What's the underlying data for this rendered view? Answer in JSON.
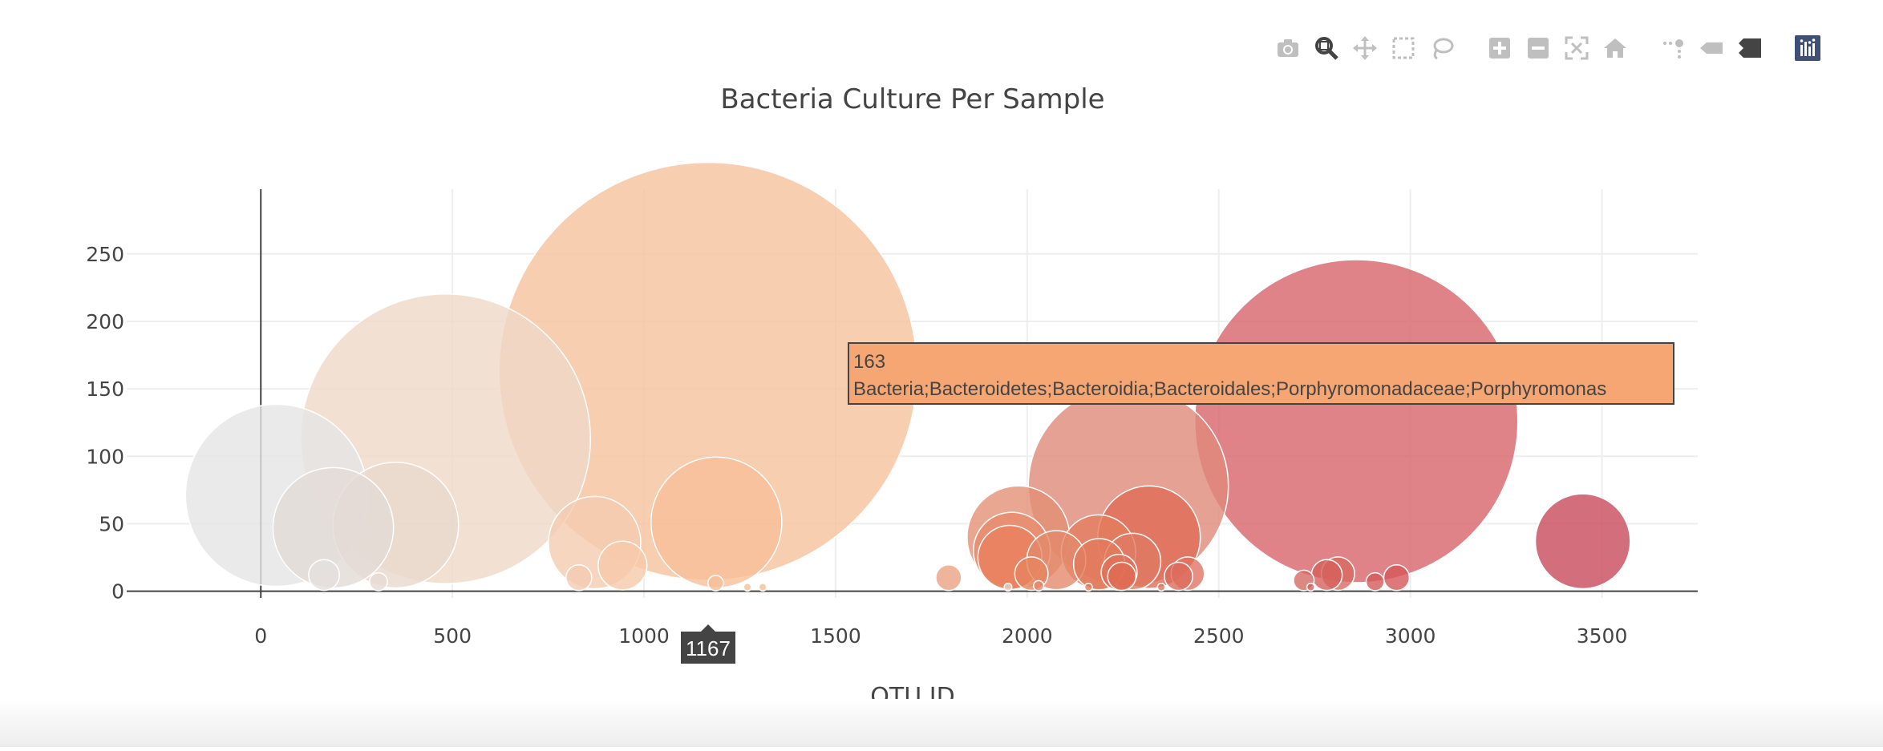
{
  "modebar": {
    "buttons": [
      {
        "name": "camera-icon",
        "group": 1
      },
      {
        "name": "zoom-icon",
        "group": 1
      },
      {
        "name": "pan-icon",
        "group": 1
      },
      {
        "name": "box-select-icon",
        "group": 1
      },
      {
        "name": "lasso-select-icon",
        "group": 1
      },
      {
        "name": "zoom-in-icon",
        "group": 2
      },
      {
        "name": "zoom-out-icon",
        "group": 2
      },
      {
        "name": "autoscale-icon",
        "group": 2
      },
      {
        "name": "reset-axes-icon",
        "group": 2
      },
      {
        "name": "spike-lines-icon",
        "group": 3
      },
      {
        "name": "hover-closest-icon",
        "group": 3
      },
      {
        "name": "hover-compare-icon",
        "group": 3
      },
      {
        "name": "plotly-logo-icon",
        "group": 4
      }
    ],
    "icon_color": "#bfbfbf",
    "active_color": "#444444",
    "logo_color": "#3f4f75"
  },
  "hover": {
    "value": "163",
    "label": "Bacteria;Bacteroidetes;Bacteroidia;Bacteroidales;Porphyromonadaceae;Porphyromonas",
    "x_label": "1167",
    "bg_color": "#f5a673",
    "x_bg_color": "#444444"
  },
  "chart_data": {
    "type": "scatter",
    "mode": "bubble",
    "title": "Bacteria Culture Per Sample",
    "xlabel": "OTU ID",
    "ylabel": "",
    "xlim": [
      -350,
      3750
    ],
    "ylim": [
      -5,
      298
    ],
    "xticks": [
      0,
      500,
      1000,
      1500,
      2000,
      2500,
      3000,
      3500
    ],
    "yticks": [
      0,
      50,
      100,
      150,
      200,
      250
    ],
    "grid": true,
    "colorscale": "Reds-like (light grey to dark red by OTU ID)",
    "points": [
      {
        "x": 41,
        "y": 71,
        "size": 71,
        "color": "#e5e5e5"
      },
      {
        "x": 189,
        "y": 47,
        "size": 47,
        "color": "#e2dbd7"
      },
      {
        "x": 352,
        "y": 49,
        "size": 49,
        "color": "#e9d8cd"
      },
      {
        "x": 482,
        "y": 113,
        "size": 113,
        "color": "#efd9c8"
      },
      {
        "x": 165,
        "y": 12,
        "size": 12,
        "color": "#e4e0dd"
      },
      {
        "x": 307,
        "y": 7,
        "size": 7,
        "color": "#e6dbd3"
      },
      {
        "x": 871,
        "y": 36,
        "size": 36,
        "color": "#f5ccb0"
      },
      {
        "x": 944,
        "y": 19,
        "size": 19,
        "color": "#f6c9a9"
      },
      {
        "x": 830,
        "y": 10,
        "size": 10,
        "color": "#f3cbb0"
      },
      {
        "x": 1167,
        "y": 163,
        "size": 163,
        "color": "#f6c29e"
      },
      {
        "x": 1189,
        "y": 51,
        "size": 51,
        "color": "#f6bf99"
      },
      {
        "x": 1187,
        "y": 6,
        "size": 6,
        "color": "#f5bf99"
      },
      {
        "x": 1795,
        "y": 10,
        "size": 10,
        "color": "#eba283"
      },
      {
        "x": 1977,
        "y": 40,
        "size": 40,
        "color": "#e49074"
      },
      {
        "x": 1960,
        "y": 30,
        "size": 30,
        "color": "#e88b6d"
      },
      {
        "x": 1955,
        "y": 25,
        "size": 25,
        "color": "#e87f5d"
      },
      {
        "x": 2011,
        "y": 13,
        "size": 13,
        "color": "#e6855f"
      },
      {
        "x": 2076,
        "y": 23,
        "size": 23,
        "color": "#e38a6c"
      },
      {
        "x": 2186,
        "y": 29,
        "size": 29,
        "color": "#e37d5f"
      },
      {
        "x": 2188,
        "y": 20,
        "size": 20,
        "color": "#e27a5c"
      },
      {
        "x": 2264,
        "y": 78,
        "size": 78,
        "color": "#e0897a"
      },
      {
        "x": 2318,
        "y": 40,
        "size": 40,
        "color": "#e06b55"
      },
      {
        "x": 2275,
        "y": 22,
        "size": 22,
        "color": "#e07a63"
      },
      {
        "x": 2240,
        "y": 14,
        "size": 14,
        "color": "#de7059"
      },
      {
        "x": 2247,
        "y": 11,
        "size": 11,
        "color": "#df6a54"
      },
      {
        "x": 2419,
        "y": 13,
        "size": 13,
        "color": "#df7464"
      },
      {
        "x": 2395,
        "y": 11,
        "size": 11,
        "color": "#dc6a5b"
      },
      {
        "x": 2859,
        "y": 126,
        "size": 126,
        "color": "#d7646a"
      },
      {
        "x": 2811,
        "y": 13,
        "size": 13,
        "color": "#d86a63"
      },
      {
        "x": 2782,
        "y": 12,
        "size": 12,
        "color": "#d6605b"
      },
      {
        "x": 2964,
        "y": 10,
        "size": 10,
        "color": "#d4585a"
      },
      {
        "x": 2722,
        "y": 8,
        "size": 8,
        "color": "#d66a64"
      },
      {
        "x": 2908,
        "y": 7,
        "size": 7,
        "color": "#d35a59"
      },
      {
        "x": 3450,
        "y": 37,
        "size": 37,
        "color": "#c84a5d"
      },
      {
        "x": 1950,
        "y": 3,
        "size": 3,
        "color": "#ecd0c5"
      },
      {
        "x": 2030,
        "y": 4,
        "size": 4,
        "color": "#e3866a"
      },
      {
        "x": 2160,
        "y": 3,
        "size": 3,
        "color": "#e27a5c"
      },
      {
        "x": 2350,
        "y": 3,
        "size": 3,
        "color": "#de7460"
      },
      {
        "x": 2740,
        "y": 3,
        "size": 3,
        "color": "#d6605b"
      },
      {
        "x": 1270,
        "y": 3,
        "size": 3,
        "color": "#f5c09a"
      },
      {
        "x": 1310,
        "y": 3,
        "size": 3,
        "color": "#f5c09a"
      }
    ]
  }
}
